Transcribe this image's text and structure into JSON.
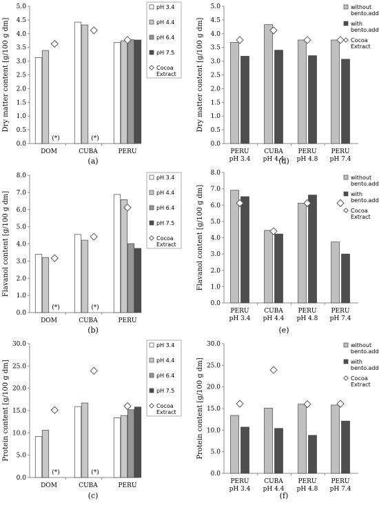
{
  "colors": {
    "pH 3.4": "#ffffff",
    "pH 4.4": "#c8c8c8",
    "pH 6.4": "#969696",
    "pH 7.5": "#4d4d4d",
    "without bento.add": "#c0c0c0",
    "with bento.add": "#4d4d4d"
  },
  "chart_data": [
    {
      "id": "a",
      "type": "bar",
      "label": "(a)",
      "ylabel": "Dry matter content [g/100 g dm]",
      "ylim": [
        0,
        5
      ],
      "yticks": [
        "0.0",
        "0.5",
        "1.0",
        "1.5",
        "2.0",
        "2.5",
        "3.0",
        "3.5",
        "4.0",
        "4.5",
        "5.0"
      ],
      "categories": [
        "DOM",
        "CUBA",
        "PERU"
      ],
      "series": [
        {
          "name": "pH 3.4",
          "values": [
            3.13,
            4.42,
            3.68
          ]
        },
        {
          "name": "pH 4.4",
          "values": [
            3.39,
            4.32,
            3.74
          ]
        },
        {
          "name": "pH 6.4",
          "values": [
            null,
            null,
            3.78
          ]
        },
        {
          "name": "pH 7.5",
          "values": [
            null,
            null,
            3.77
          ]
        }
      ],
      "markers": {
        "name": "Cocoa Extract",
        "values": [
          3.63,
          4.12,
          3.77
        ]
      },
      "notes": [
        "(*)",
        "(*)",
        null
      ],
      "legend_lines": [
        [
          "pH 3.4"
        ],
        [
          "pH 4.4"
        ],
        [
          "pH 6.4"
        ],
        [
          "pH 7.5"
        ],
        [
          "Cocoa",
          "Extract"
        ]
      ]
    },
    {
      "id": "d",
      "type": "bar",
      "label": "(d)",
      "ylabel": "Dry matter content [g/100 g dm]",
      "ylim": [
        0,
        5
      ],
      "yticks": [
        "0.0",
        "0.5",
        "1.0",
        "1.5",
        "2.0",
        "2.5",
        "3.0",
        "3.5",
        "4.0",
        "4.5",
        "5.0"
      ],
      "categories": [
        [
          "PERU",
          "pH 3.4"
        ],
        [
          "CUBA",
          "pH 4.4"
        ],
        [
          "PERU",
          "pH 4.8"
        ],
        [
          "PERU",
          "pH 7.4"
        ]
      ],
      "series": [
        {
          "name": "without bento.add",
          "values": [
            3.68,
            4.33,
            3.77,
            3.77
          ]
        },
        {
          "name": "with bento.add",
          "values": [
            3.18,
            3.4,
            3.2,
            3.07
          ]
        }
      ],
      "markers": {
        "name": "Cocoa Extract",
        "values": [
          3.77,
          4.12,
          3.77,
          3.77
        ]
      },
      "notes": [
        null,
        null,
        null,
        null
      ],
      "legend_lines": [
        [
          "without",
          "bento.add"
        ],
        [
          "with",
          "bento.add"
        ],
        [
          "Cocoa",
          "Extract"
        ]
      ]
    },
    {
      "id": "b",
      "type": "bar",
      "label": "(b)",
      "ylabel": "Flavanol content [g/100 g dm]",
      "ylim": [
        0,
        8
      ],
      "yticks": [
        "0.0",
        "1.0",
        "2.0",
        "3.0",
        "4.0",
        "5.0",
        "6.0",
        "7.0",
        "8.0"
      ],
      "categories": [
        "DOM",
        "CUBA",
        "PERU"
      ],
      "series": [
        {
          "name": "pH 3.4",
          "values": [
            3.4,
            4.55,
            6.88
          ]
        },
        {
          "name": "pH 4.4",
          "values": [
            3.21,
            4.22,
            6.58
          ]
        },
        {
          "name": "pH 6.4",
          "values": [
            null,
            null,
            4.02
          ]
        },
        {
          "name": "pH 7.5",
          "values": [
            null,
            null,
            3.74
          ]
        }
      ],
      "markers": {
        "name": "Cocoa Extract",
        "values": [
          3.17,
          4.42,
          6.12
        ]
      },
      "notes": [
        "(*)",
        "(*)",
        null
      ],
      "legend_lines": [
        [
          "pH 3.4"
        ],
        [
          "pH 4.4"
        ],
        [
          "pH 6.4"
        ],
        [
          "pH 7.5"
        ],
        [
          "Cocoa",
          "Extract"
        ]
      ]
    },
    {
      "id": "e",
      "type": "bar",
      "label": "(e)",
      "ylabel": "Flavanol content [g/100 g dm]",
      "ylim": [
        0,
        8
      ],
      "yticks": [
        "0.0",
        "1.0",
        "2.0",
        "3.0",
        "4.0",
        "5.0",
        "6.0",
        "7.0",
        "8.0"
      ],
      "categories": [
        [
          "PERU",
          "pH 3.4"
        ],
        [
          "CUBA",
          "pH 4.4"
        ],
        [
          "PERU",
          "pH 4.8"
        ],
        [
          "PERU",
          "pH 7.4"
        ]
      ],
      "series": [
        {
          "name": "without bento.add",
          "values": [
            6.91,
            4.45,
            6.12,
            3.74
          ]
        },
        {
          "name": "with bento.add",
          "values": [
            6.52,
            4.23,
            6.62,
            3.0
          ]
        }
      ],
      "markers": {
        "name": "Cocoa Extract",
        "values": [
          6.12,
          4.4,
          6.12,
          6.12
        ]
      },
      "notes": [
        null,
        null,
        null,
        null
      ],
      "legend_lines": [
        [
          "without",
          "bento.add"
        ],
        [
          "with",
          "bento.add"
        ],
        [
          "Cocoa",
          "Extract"
        ]
      ]
    },
    {
      "id": "c",
      "type": "bar",
      "label": "(c)",
      "ylabel": "Protein content [g/100 g dm]",
      "ylim": [
        0,
        30
      ],
      "yticks": [
        "0.0",
        "5.0",
        "10.0",
        "15.0",
        "20.0",
        "25.0",
        "30.0"
      ],
      "categories": [
        "DOM",
        "CUBA",
        "PERU"
      ],
      "series": [
        {
          "name": "pH 3.4",
          "values": [
            9.2,
            15.9,
            13.4
          ]
        },
        {
          "name": "pH 4.4",
          "values": [
            10.6,
            16.7,
            13.9
          ]
        },
        {
          "name": "pH 6.4",
          "values": [
            null,
            null,
            15.2
          ]
        },
        {
          "name": "pH 7.5",
          "values": [
            null,
            null,
            15.8
          ]
        }
      ],
      "markers": {
        "name": "Cocoa Extract",
        "values": [
          15.1,
          23.9,
          16.0
        ]
      },
      "notes": [
        "(*)",
        "(*)",
        null
      ],
      "legend_lines": [
        [
          "pH 3.4"
        ],
        [
          "pH 4.4"
        ],
        [
          "pH 6.4"
        ],
        [
          "pH 7.5"
        ],
        [
          "Cocoa",
          "Extract"
        ]
      ]
    },
    {
      "id": "f",
      "type": "bar",
      "label": "(f)",
      "ylabel": "Protein content [g/100 g dm]",
      "ylim": [
        0,
        30
      ],
      "yticks": [
        "0.0",
        "5.0",
        "10.0",
        "15.0",
        "20.0",
        "25.0",
        "30.0"
      ],
      "categories": [
        [
          "PERU",
          "pH 3.4"
        ],
        [
          "CUBA",
          "pH 4.4"
        ],
        [
          "PERU",
          "pH 4.8"
        ],
        [
          "PERU",
          "pH 7.4"
        ]
      ],
      "series": [
        {
          "name": "without bento.add",
          "values": [
            13.4,
            15.1,
            16.0,
            15.8
          ]
        },
        {
          "name": "with bento.add",
          "values": [
            10.7,
            10.4,
            8.8,
            12.1
          ]
        }
      ],
      "markers": {
        "name": "Cocoa Extract",
        "values": [
          16.1,
          23.9,
          16.0,
          16.1
        ]
      },
      "notes": [
        null,
        null,
        null,
        null
      ],
      "legend_lines": [
        [
          "without",
          "bento.add"
        ],
        [
          "with",
          "bento.add"
        ],
        [
          "Cocoa",
          "Extract"
        ]
      ]
    }
  ]
}
